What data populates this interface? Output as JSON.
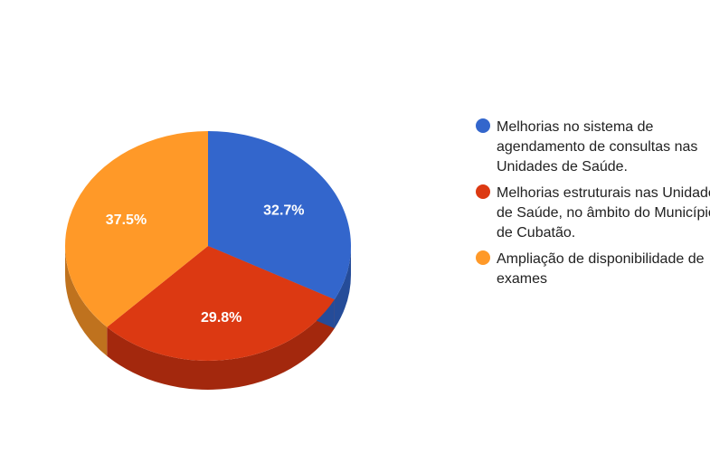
{
  "chart_data": {
    "type": "pie",
    "style": "3d",
    "legend_position": "right",
    "series": [
      {
        "name": "Melhorias no sistema de agendamento de consultas nas Unidades de Saúde.",
        "legend_lines": [
          "Melhorias no sistema de",
          "agendamento de consultas nas",
          "Unidades de Saúde."
        ],
        "value": 32.7,
        "label": "32.7%",
        "color": "#3366CC",
        "side_color": "#254C99"
      },
      {
        "name": "Melhorias estruturais nas Unidades de Saúde, no âmbito do Município de Cubatão.",
        "legend_lines": [
          "Melhorias estruturais nas Unidades",
          "de Saúde, no âmbito do Município",
          "de Cubatão."
        ],
        "value": 29.8,
        "label": "29.8%",
        "color": "#DC3912",
        "side_color": "#A3280D"
      },
      {
        "name": "Ampliação de disponibilidade de exames",
        "legend_lines": [
          "Ampliação de disponibilidade de",
          "exames"
        ],
        "value": 37.5,
        "label": "37.5%",
        "color": "#FF9928",
        "side_color": "#BF721E"
      }
    ]
  }
}
